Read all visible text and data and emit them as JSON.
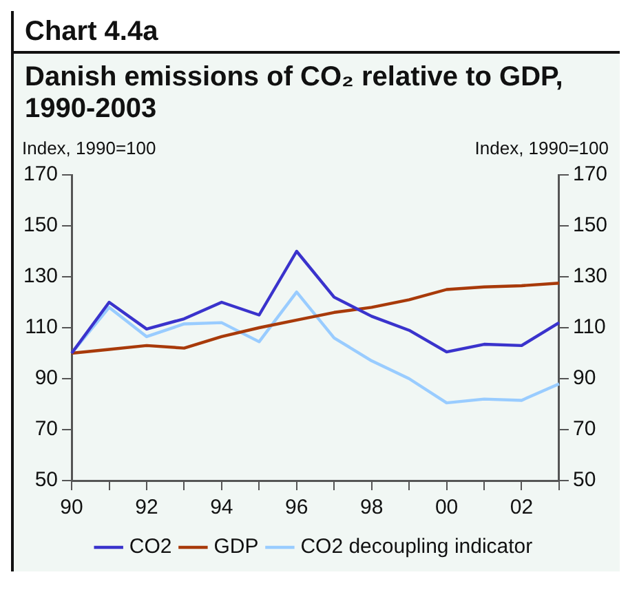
{
  "chart_data": {
    "type": "line",
    "title": "Chart 4.4a",
    "subtitle": "Danish emissions of CO₂ relative to GDP, 1990-2003",
    "ylabel": "Index, 1990=100",
    "y2label": "Index, 1990=100",
    "categories": [
      "90",
      null,
      "92",
      null,
      "94",
      null,
      "96",
      null,
      "98",
      null,
      "00",
      null,
      "02",
      null
    ],
    "series": [
      {
        "name": "CO2",
        "color": "#3a33cc",
        "values": [
          100,
          120,
          109.5,
          113.5,
          120,
          115,
          140,
          122,
          114.5,
          109,
          100.5,
          103.5,
          103,
          112
        ]
      },
      {
        "name": "GDP",
        "color": "#a83a0a",
        "values": [
          100,
          101.5,
          103,
          102,
          106.5,
          110,
          113,
          116,
          118,
          121,
          125,
          126,
          126.5,
          127.5
        ]
      },
      {
        "name": "CO2 decoupling indicator",
        "color": "#99ccff",
        "values": [
          100,
          118,
          106.5,
          111.5,
          112,
          104.5,
          124,
          106,
          97,
          90,
          80.5,
          82,
          81.5,
          88
        ]
      }
    ],
    "ylim": [
      50,
      170
    ],
    "yticks": [
      50,
      70,
      90,
      110,
      130,
      150,
      170
    ],
    "y2lim": [
      50,
      170
    ],
    "y2ticks": [
      50,
      70,
      90,
      110,
      130,
      150,
      170
    ],
    "grid": false,
    "legend": "bottom",
    "marker": "none",
    "line_style": "solid"
  }
}
